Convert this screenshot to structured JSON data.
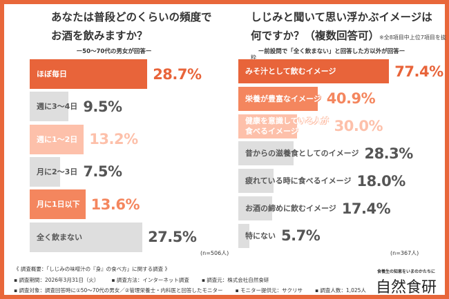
{
  "colors": {
    "frame": "#E8673A",
    "dark": "#E8643A",
    "mid": "#F4865E",
    "light": "#FDC0AA",
    "grey": "#DEDEDE",
    "grey_text": "#555555"
  },
  "left": {
    "title_line1": "あなたは普段どのくらいの頻度で",
    "title_line2": "お酒を飲みますか？",
    "subtitle": "ー50〜70代の男女が回答ー",
    "n": "(n=506人)"
  },
  "right": {
    "title_line1": "しじみと聞いて思い浮かぶイメージは",
    "title_line2": "何ですか？（複数回答可）",
    "note": "※全8項目中上位7項目を抜粋",
    "subtitle": "ー前設問で「全く飲まない」と回答した方以外が回答ー",
    "n": "(n=367人)"
  },
  "chart_data": [
    {
      "type": "bar",
      "orientation": "horizontal",
      "unit": "%",
      "xlim": [
        0,
        100
      ],
      "categories": [
        "ほぼ毎日",
        "週に3〜4日",
        "週に1〜2日",
        "月に2〜3日",
        "月に1日以下",
        "全く飲まない"
      ],
      "values": [
        28.7,
        9.5,
        13.2,
        7.5,
        13.6,
        27.5
      ],
      "labels": [
        "28.7%",
        "9.5%",
        "13.2%",
        "7.5%",
        "13.6%",
        "27.5%"
      ],
      "bar_colors": [
        "dark",
        "grey",
        "light",
        "grey",
        "mid",
        "grey"
      ]
    },
    {
      "type": "bar",
      "orientation": "horizontal",
      "unit": "%",
      "xlim": [
        0,
        100
      ],
      "categories": [
        "みそ汁として飲むイメージ",
        "栄養が豊富なイメージ",
        "健康を意識している人が\n食べるイメージ",
        "昔からの滋養食としてのイメージ",
        "疲れている時に食べるイメージ",
        "お酒の締めに飲むイメージ",
        "特にない"
      ],
      "values": [
        77.4,
        40.9,
        30.0,
        28.3,
        18.0,
        17.4,
        5.7
      ],
      "labels": [
        "77.4%",
        "40.9%",
        "30.0%",
        "28.3%",
        "18.0%",
        "17.4%",
        "5.7%"
      ],
      "bar_colors": [
        "dark",
        "mid",
        "light",
        "grey",
        "grey",
        "grey",
        "grey"
      ]
    }
  ],
  "footer": {
    "line1": "《 調査概要：「しじみの味噌汁の『身』の食べ方」に関する調査 》",
    "line2": [
      "▪ 調査期間：2026年3月31日（火）",
      "▪ 調査方法：インターネット調査",
      "▪ 調査元：株式会社自然食研"
    ],
    "line3": [
      "▪ 調査対象：調査回答時に①50〜70代の男女／②管理栄養士・内科医と回答したモニター",
      "▪ モニター提供元：サクリサ",
      "▪ 調査人数：1,025人"
    ]
  },
  "logo": {
    "tagline": "食養生の知恵をいまのかたちに",
    "name": "自然食研"
  }
}
